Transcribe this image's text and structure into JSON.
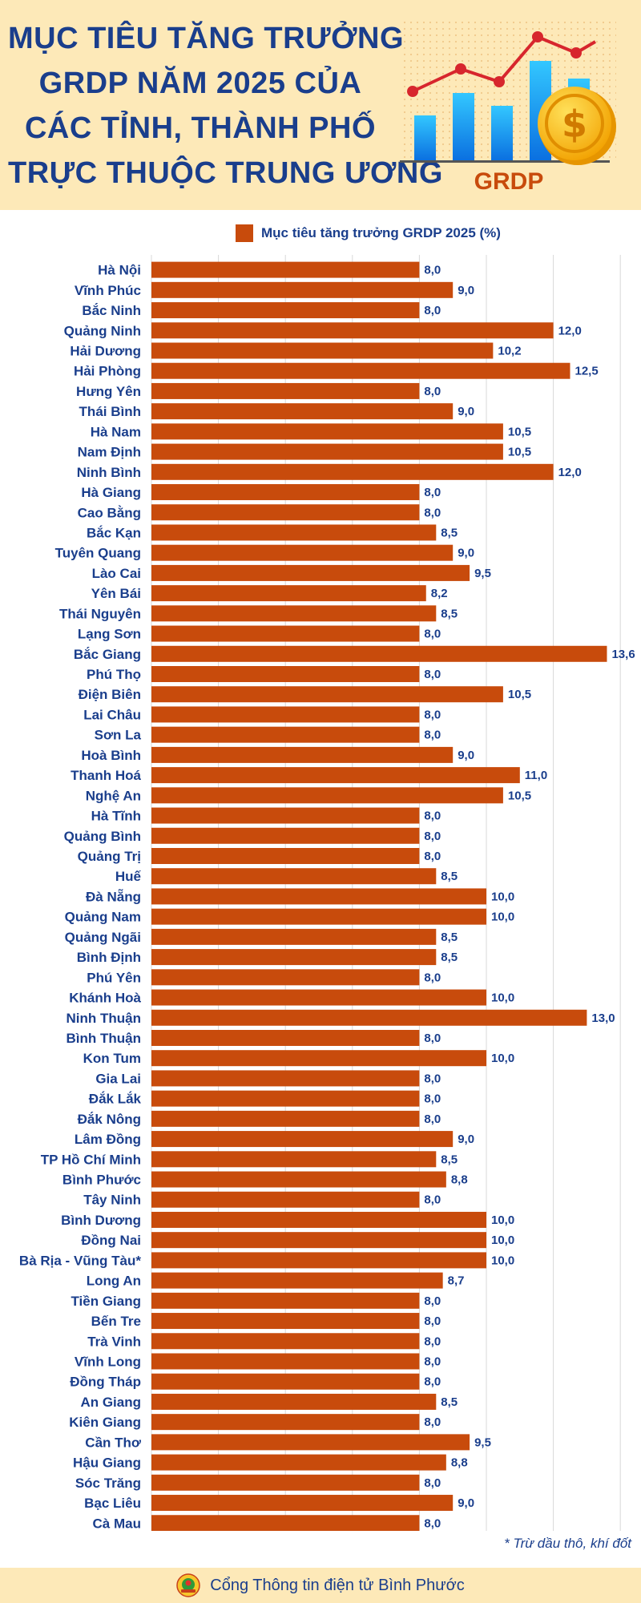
{
  "header": {
    "title_lines": [
      "MỤC TIÊU TĂNG TRƯỞNG",
      "GRDP NĂM 2025 CỦA",
      "CÁC TỈNH, THÀNH PHỐ",
      "TRỰC THUỘC TRUNG ƯƠNG"
    ],
    "illustration_label": "GRDP",
    "illustration_icons": [
      "bar-chart-icon",
      "line-trend-icon",
      "dollar-coin-icon"
    ]
  },
  "chart_data": {
    "type": "bar",
    "orientation": "horizontal",
    "title": "MỤC TIÊU TĂNG TRƯỞNG GRDP NĂM 2025 CỦA CÁC TỈNH, THÀNH PHỐ TRỰC THUỘC TRUNG ƯƠNG",
    "legend_position": "top",
    "grid": true,
    "xlim": [
      0,
      14
    ],
    "bar_color": "#c84b0c",
    "label_color": "#1a3e8c",
    "series": [
      {
        "name": "Mục tiêu tăng trưởng GRDP 2025 (%)",
        "categories": [
          "Hà Nội",
          "Vĩnh Phúc",
          "Bắc Ninh",
          "Quảng Ninh",
          "Hải Dương",
          "Hải Phòng",
          "Hưng Yên",
          "Thái Bình",
          "Hà Nam",
          "Nam Định",
          "Ninh Bình",
          "Hà Giang",
          "Cao Bằng",
          "Bắc Kạn",
          "Tuyên Quang",
          "Lào Cai",
          "Yên Bái",
          "Thái Nguyên",
          "Lạng Sơn",
          "Bắc Giang",
          "Phú Thọ",
          "Điện Biên",
          "Lai Châu",
          "Sơn La",
          "Hoà Bình",
          "Thanh Hoá",
          "Nghệ An",
          "Hà Tĩnh",
          "Quảng Bình",
          "Quảng Trị",
          "Huế",
          "Đà Nẵng",
          "Quảng Nam",
          "Quảng Ngãi",
          "Bình Định",
          "Phú Yên",
          "Khánh Hoà",
          "Ninh Thuận",
          "Bình Thuận",
          "Kon Tum",
          "Gia Lai",
          "Đắk Lắk",
          "Đắk Nông",
          "Lâm Đồng",
          "TP Hồ Chí Minh",
          "Bình Phước",
          "Tây Ninh",
          "Bình Dương",
          "Đồng Nai",
          "Bà Rịa - Vũng Tàu*",
          "Long An",
          "Tiền Giang",
          "Bến Tre",
          "Trà Vinh",
          "Vĩnh Long",
          "Đồng Tháp",
          "An Giang",
          "Kiên Giang",
          "Cần Thơ",
          "Hậu Giang",
          "Sóc Trăng",
          "Bạc Liêu",
          "Cà Mau"
        ],
        "values": [
          8.0,
          9.0,
          8.0,
          12.0,
          10.2,
          12.5,
          8.0,
          9.0,
          10.5,
          10.5,
          12.0,
          8.0,
          8.0,
          8.5,
          9.0,
          9.5,
          8.2,
          8.5,
          8.0,
          13.6,
          8.0,
          10.5,
          8.0,
          8.0,
          9.0,
          11.0,
          10.5,
          8.0,
          8.0,
          8.0,
          8.5,
          10.0,
          10.0,
          8.5,
          8.5,
          8.0,
          10.0,
          13.0,
          8.0,
          10.0,
          8.0,
          8.0,
          8.0,
          9.0,
          8.5,
          8.8,
          8.0,
          10.0,
          10.0,
          10.0,
          8.7,
          8.0,
          8.0,
          8.0,
          8.0,
          8.0,
          8.5,
          8.0,
          9.5,
          8.8,
          8.0,
          9.0,
          8.0
        ],
        "value_labels": [
          "8,0",
          "9,0",
          "8,0",
          "12,0",
          "10,2",
          "12,5",
          "8,0",
          "9,0",
          "10,5",
          "10,5",
          "12,0",
          "8,0",
          "8,0",
          "8,5",
          "9,0",
          "9,5",
          "8,2",
          "8,5",
          "8,0",
          "13,6",
          "8,0",
          "10,5",
          "8,0",
          "8,0",
          "9,0",
          "11,0",
          "10,5",
          "8,0",
          "8,0",
          "8,0",
          "8,5",
          "10,0",
          "10,0",
          "8,5",
          "8,5",
          "8,0",
          "10,0",
          "13,0",
          "8,0",
          "10,0",
          "8,0",
          "8,0",
          "8,0",
          "9,0",
          "8,5",
          "8,8",
          "8,0",
          "10,0",
          "10,0",
          "10,0",
          "8,7",
          "8,0",
          "8,0",
          "8,0",
          "8,0",
          "8,0",
          "8,5",
          "8,0",
          "9,5",
          "8,8",
          "8,0",
          "9,0",
          "8,0"
        ]
      }
    ]
  },
  "footnote": "* Trừ dầu thô, khí đốt",
  "footer": {
    "logo_icon": "binh-phuoc-emblem-icon",
    "text": "Cổng Thông tin điện tử Bình Phước"
  }
}
